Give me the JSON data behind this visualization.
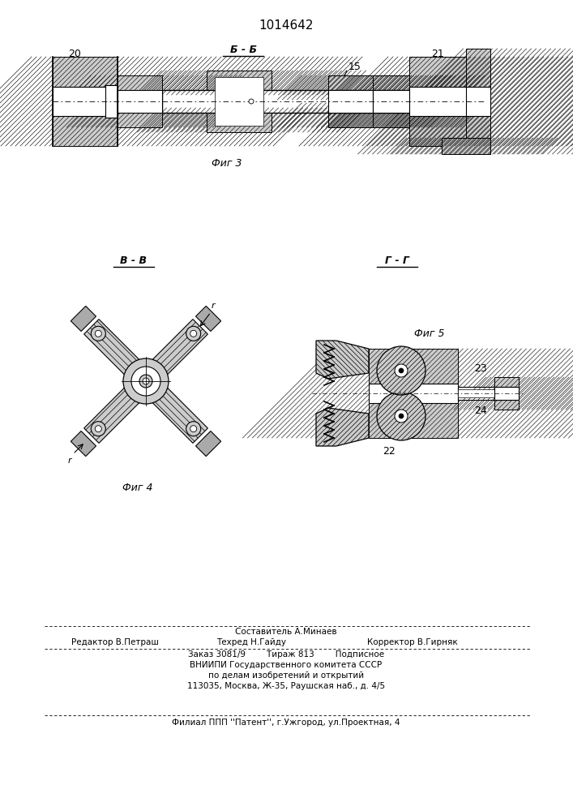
{
  "patent_number": "1014642",
  "bg_color": "#ffffff",
  "label_b_b": "Б - Б",
  "label_v_v": "В - В",
  "label_g_g": "Г - Г",
  "fig3_caption": "Фиг 3",
  "fig4_caption": "Фиг 4",
  "fig5_caption": "Фиг 5",
  "editor_line": "Редактор В.Петраш",
  "composer_line": "Составитель А.Минаев",
  "techred_line": "Техред Н.Гайду",
  "corrector_line": "Корректор В.Гирняк",
  "order_line": "Заказ 3081/9        Тираж 813        Подписное",
  "vniiipi_line": "ВНИИПИ Государственного комитета СССР",
  "dela_line": "по делам изобретений и открытий",
  "address_line": "113035, Москва, Ж-35, Раушская наб., д. 4/5",
  "filial_line": "Филиал ППП ''Патент'', г.Ужгород, ул.Проектная, 4"
}
